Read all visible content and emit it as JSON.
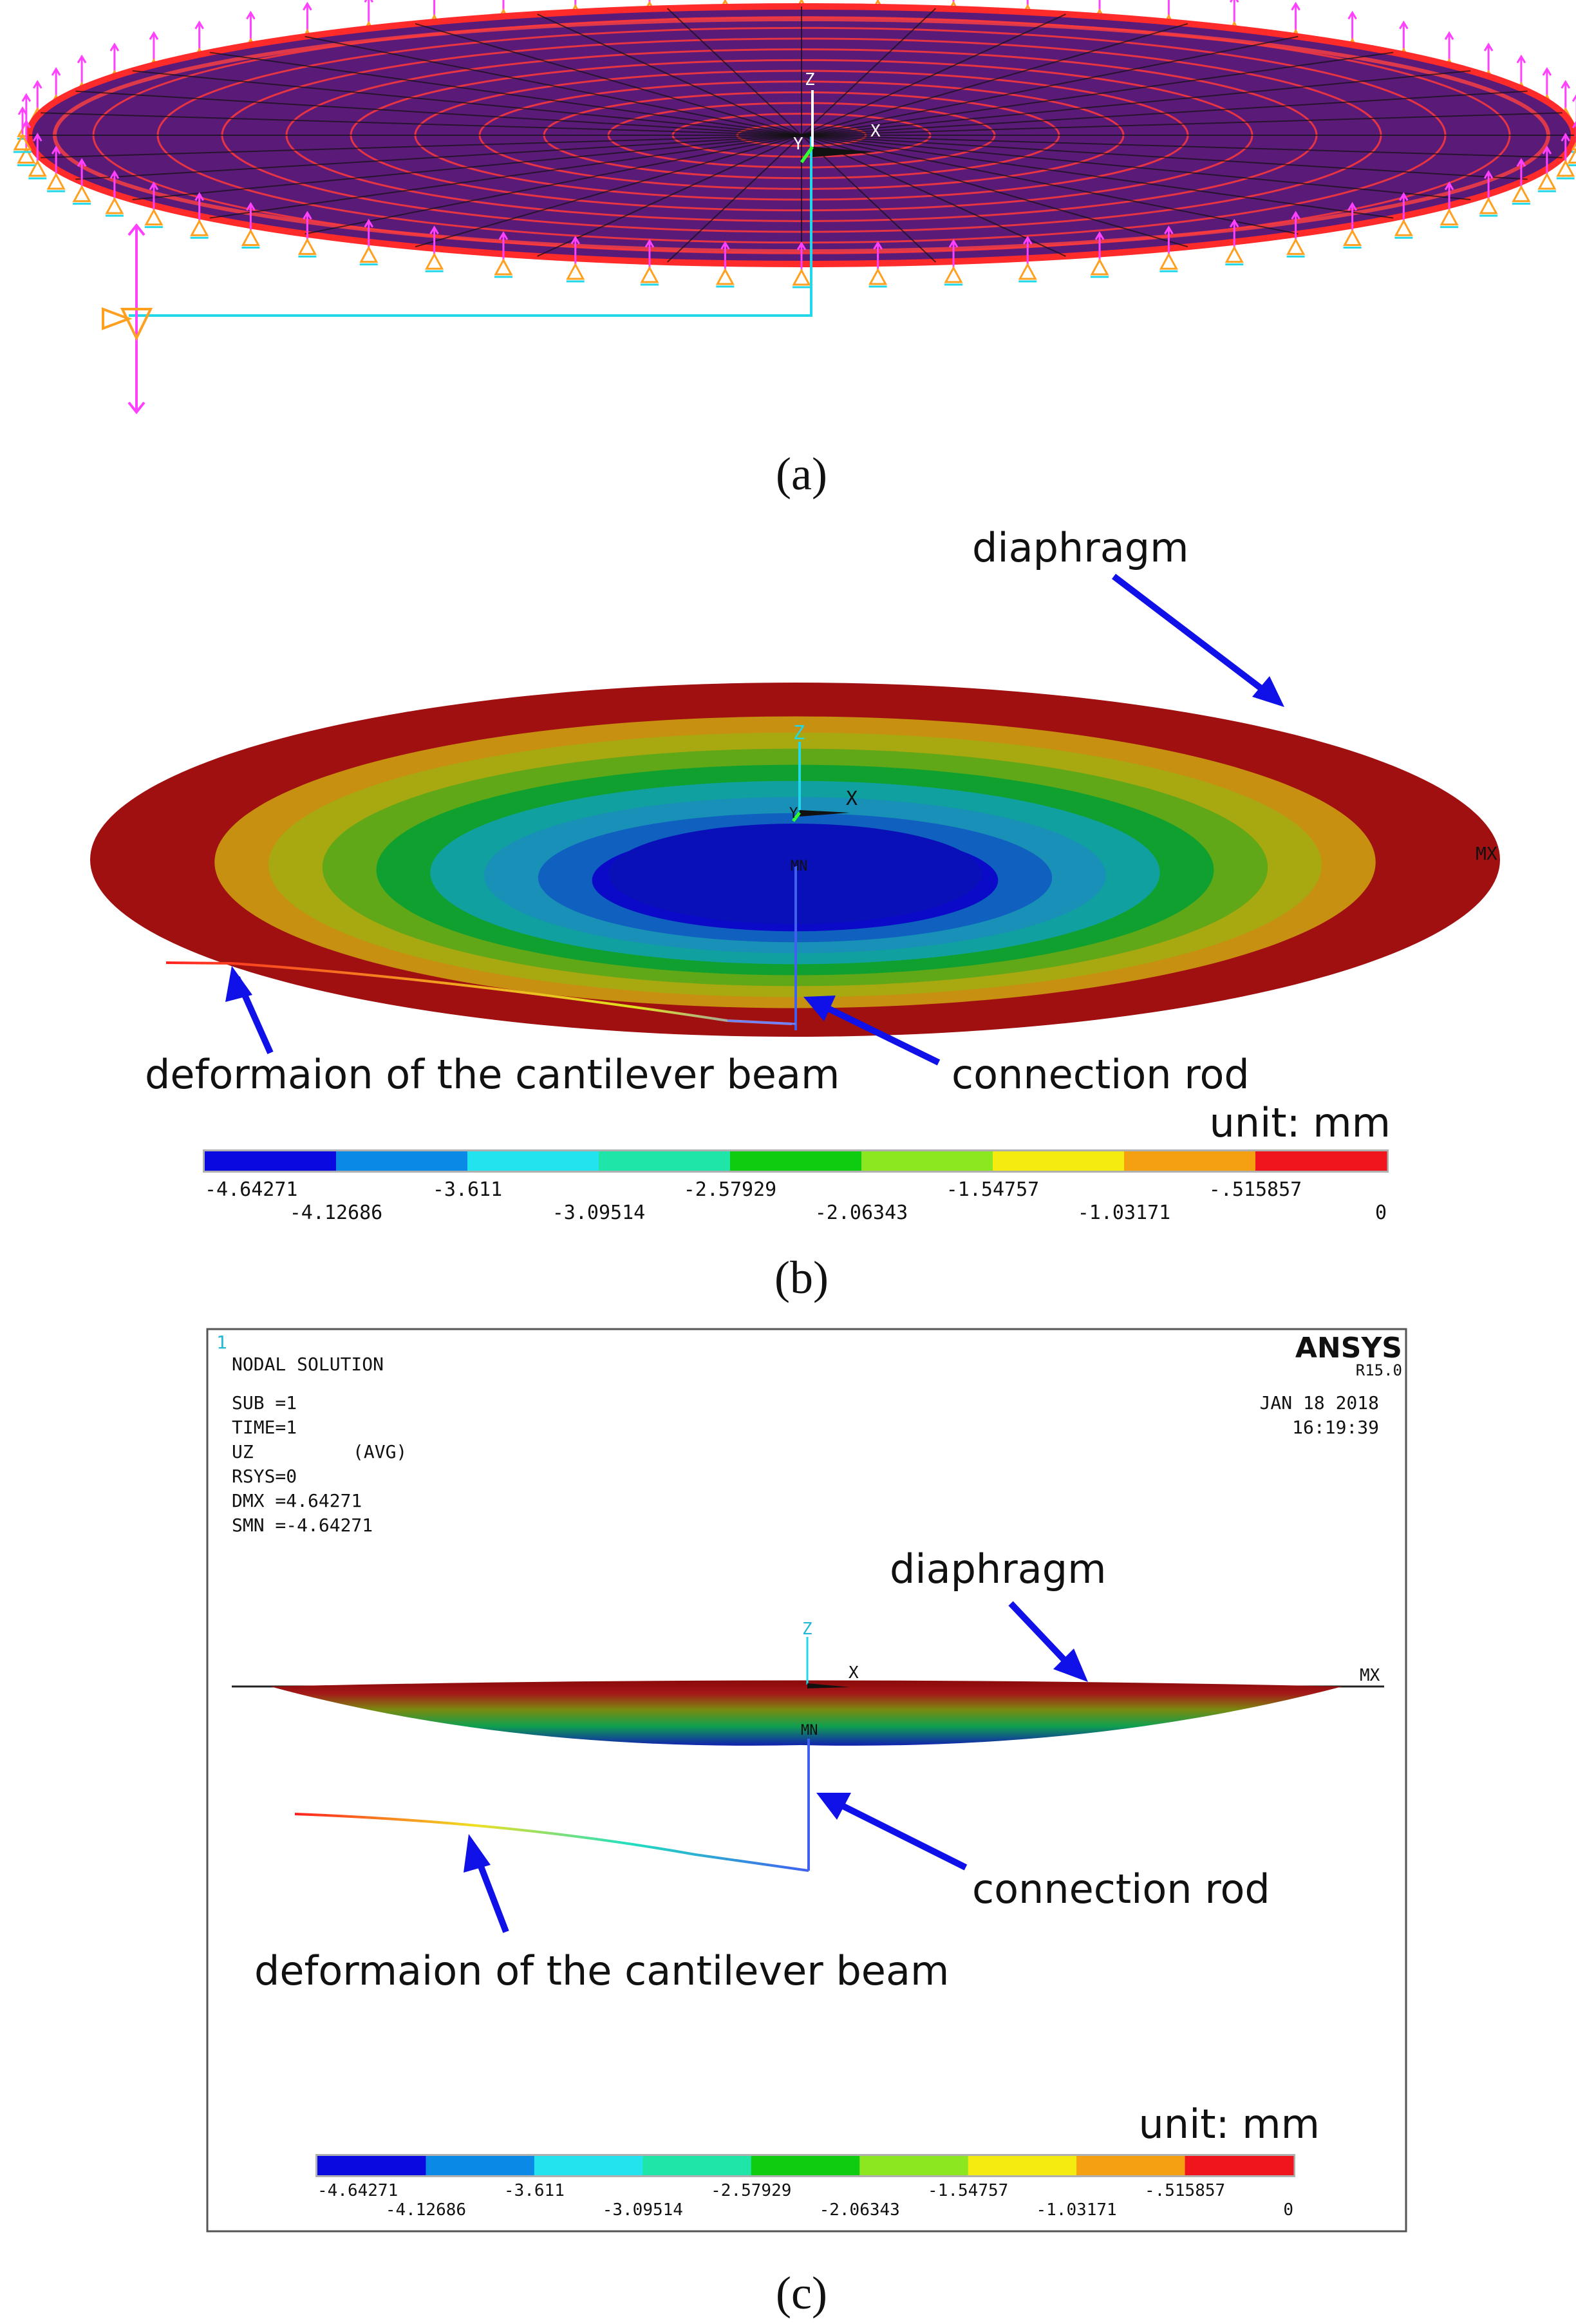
{
  "panel_a": {
    "caption": "(a)",
    "axis_labels": {
      "x": "X",
      "y": "Y",
      "z": "Z"
    }
  },
  "panel_b": {
    "caption": "(b)",
    "label_diaphragm": "diaphragm",
    "label_beam": "deformaion of the cantilever beam",
    "label_rod": "connection rod",
    "unit": "unit: mm",
    "axis_labels": {
      "x": "X",
      "y": "Y",
      "z": "Z"
    },
    "mx": "MX",
    "mn": "MN"
  },
  "panel_c": {
    "caption": "(c)",
    "window_number": "1",
    "solution_type": "NODAL SOLUTION",
    "sub": "SUB =1",
    "time": "TIME=1",
    "uz": "UZ",
    "avg": "(AVG)",
    "rsys": "RSYS=0",
    "dmx": "DMX =4.64271",
    "smn": "SMN =-4.64271",
    "brand": "ANSYS",
    "version": "R15.0",
    "date": "JAN 18 2018",
    "clock": "16:19:39",
    "label_diaphragm": "diaphragm",
    "label_rod": "connection rod",
    "label_beam": "deformaion of the cantilever beam",
    "unit": "unit: mm",
    "axis_labels": {
      "x": "X",
      "z": "Z"
    },
    "mx": "MX",
    "mn": "MN"
  },
  "legend": {
    "colors": [
      "#0a0ae0",
      "#0a8ae6",
      "#22e3ee",
      "#1fe6a8",
      "#10cc10",
      "#8ce620",
      "#f4ec10",
      "#f4a010",
      "#f0141c"
    ],
    "top_labels": [
      "-4.64271",
      "-3.611",
      "-2.57929",
      "-1.54757",
      "-.515857"
    ],
    "bottom_labels": [
      "-4.12686",
      "-3.09514",
      "-2.06343",
      "-1.03171",
      "0"
    ]
  },
  "contour_colors": [
    "#0a0ac8",
    "#1060c0",
    "#1890b8",
    "#10a0a0",
    "#10a030",
    "#60a818",
    "#a8a810",
    "#c89010",
    "#a01010"
  ]
}
